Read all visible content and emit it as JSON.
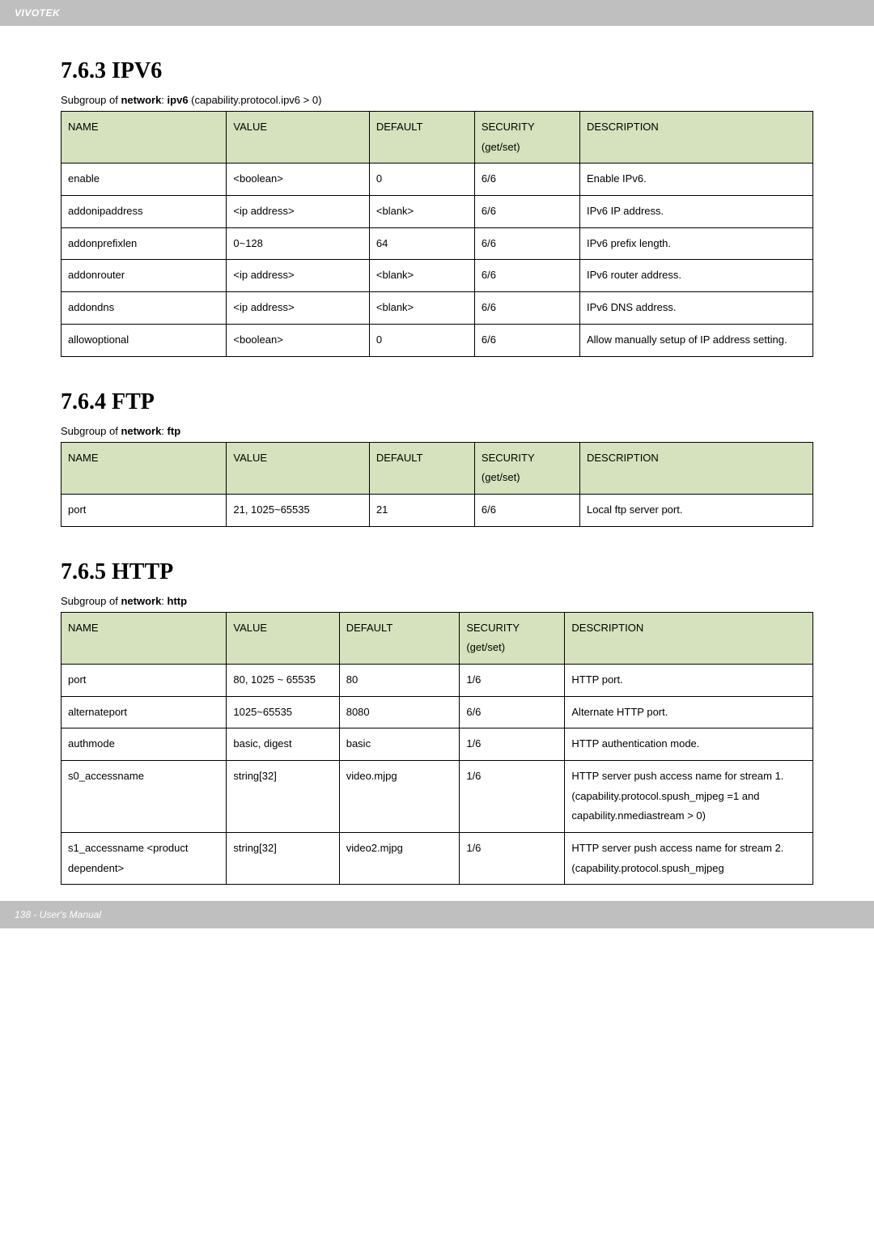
{
  "header": {
    "brand": "VIVOTEK"
  },
  "sections": {
    "ipv6": {
      "title": "7.6.3 IPV6",
      "subgroup_prefix": "Subgroup of ",
      "subgroup_bold1": "network",
      "subgroup_mid": ": ",
      "subgroup_bold2": "ipv6",
      "subgroup_suffix": " (capability.protocol.ipv6 > 0)",
      "cols": [
        "NAME",
        "VALUE",
        "DEFAULT",
        "SECURITY (get/set)",
        "DESCRIPTION"
      ],
      "rows": [
        [
          "enable",
          "<boolean>",
          "0",
          "6/6",
          "Enable IPv6."
        ],
        [
          "addonipaddress",
          "<ip address>",
          "<blank>",
          "6/6",
          "IPv6 IP address."
        ],
        [
          "addonprefixlen",
          "0~128",
          "64",
          "6/6",
          "IPv6 prefix length."
        ],
        [
          "addonrouter",
          "<ip address>",
          "<blank>",
          "6/6",
          "IPv6 router address."
        ],
        [
          "addondns",
          "<ip address>",
          "<blank>",
          "6/6",
          "IPv6 DNS address."
        ],
        [
          "allowoptional",
          "<boolean>",
          "0",
          "6/6",
          "Allow manually setup of IP address setting."
        ]
      ]
    },
    "ftp": {
      "title": "7.6.4 FTP",
      "subgroup_prefix": "Subgroup of ",
      "subgroup_bold1": "network",
      "subgroup_mid": ": ",
      "subgroup_bold2": "ftp",
      "subgroup_suffix": "",
      "cols": [
        "NAME",
        "VALUE",
        "DEFAULT",
        "SECURITY (get/set)",
        "DESCRIPTION"
      ],
      "rows": [
        [
          "port",
          "21, 1025~65535",
          "21",
          "6/6",
          "Local ftp server port."
        ]
      ]
    },
    "http": {
      "title": "7.6.5 HTTP",
      "subgroup_prefix": "Subgroup of ",
      "subgroup_bold1": "network",
      "subgroup_mid": ": ",
      "subgroup_bold2": "http",
      "subgroup_suffix": "",
      "cols": [
        "NAME",
        "VALUE",
        "DEFAULT",
        "SECURITY (get/set)",
        "DESCRIPTION"
      ],
      "rows": [
        [
          "port",
          "80, 1025 ~ 65535",
          "80",
          "1/6",
          "HTTP port."
        ],
        [
          "alternateport",
          "1025~65535",
          "8080",
          "6/6",
          "Alternate HTTP port."
        ],
        [
          "authmode",
          "basic, digest",
          "basic",
          "1/6",
          "HTTP authentication mode."
        ],
        [
          "s0_accessname",
          "string[32]",
          "video.mjpg",
          "1/6",
          "HTTP server push access name for stream 1. (capability.protocol.spush_mjpeg =1 and capability.nmediastream > 0)"
        ],
        [
          "s1_accessname <product dependent>",
          "string[32]",
          "video2.mjpg",
          "1/6",
          "HTTP server push access name for stream 2. (capability.protocol.spush_mjpeg"
        ]
      ]
    }
  },
  "footer": {
    "text": "138 - User's Manual"
  },
  "table_styles": {
    "ipv6_cols": [
      "22%",
      "19%",
      "14%",
      "14%",
      "31%"
    ],
    "ftp_cols": [
      "22%",
      "19%",
      "14%",
      "14%",
      "31%"
    ],
    "http_cols": [
      "22%",
      "15%",
      "16%",
      "14%",
      "33%"
    ]
  }
}
